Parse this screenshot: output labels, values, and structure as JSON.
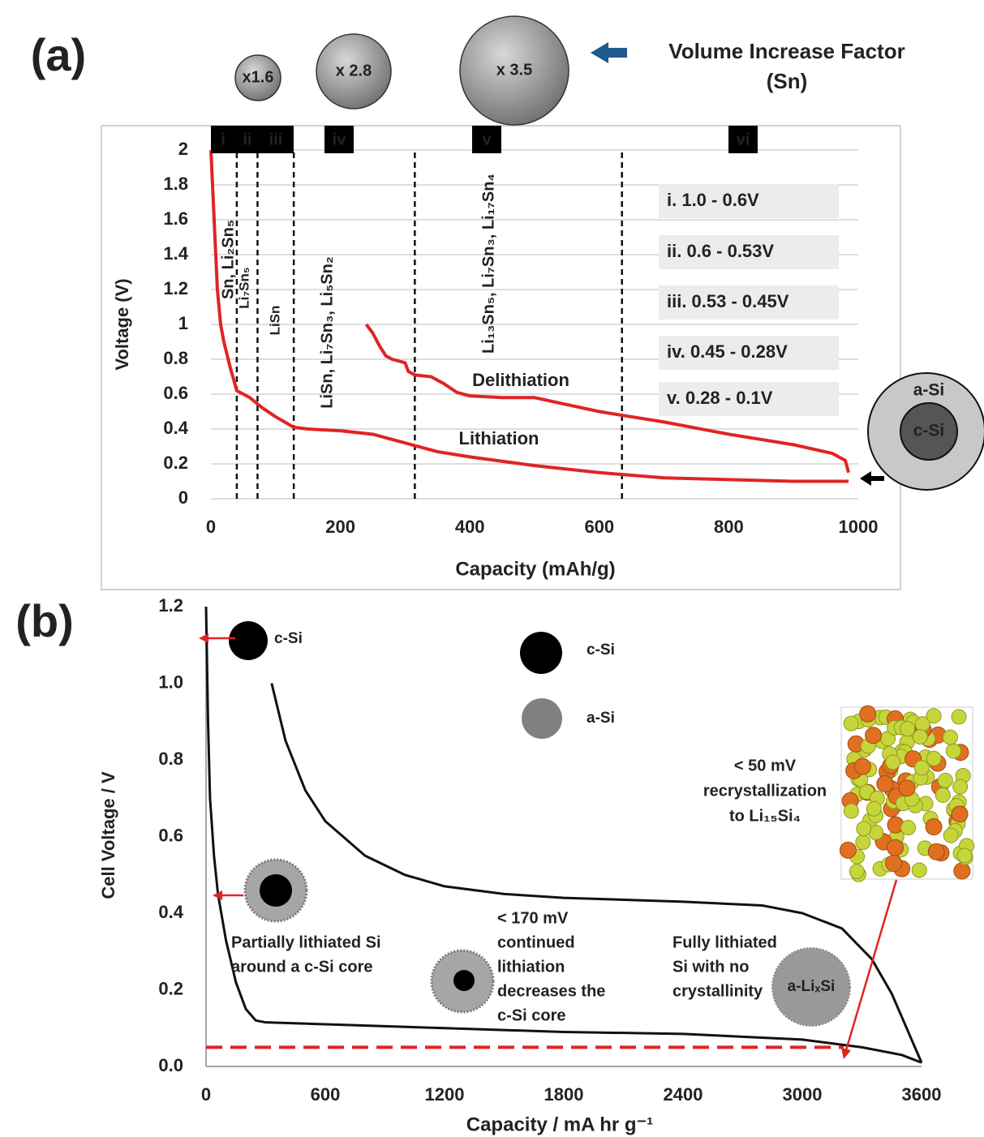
{
  "chart_data": [
    {
      "type": "line",
      "panel_label": "(a)",
      "x_label": "Capacity (mAh/g)",
      "y_label": "Voltage (V)",
      "xlim": [
        0,
        1000
      ],
      "xticks": [
        0,
        200,
        400,
        600,
        800,
        1000
      ],
      "ylim": [
        0,
        2
      ],
      "yticks": [
        0,
        0.2,
        0.4,
        0.6,
        0.8,
        1,
        1.2,
        1.4,
        1.6,
        1.8,
        2
      ],
      "grid": true,
      "series": [
        {
          "name": "Lithiation",
          "color": "#e02424",
          "x": [
            0,
            5,
            10,
            15,
            20,
            30,
            40,
            60,
            80,
            100,
            128,
            150,
            200,
            250,
            300,
            350,
            400,
            500,
            600,
            700,
            800,
            900,
            985
          ],
          "values": [
            2.0,
            1.6,
            1.2,
            1.0,
            0.9,
            0.75,
            0.62,
            0.58,
            0.52,
            0.47,
            0.41,
            0.4,
            0.39,
            0.37,
            0.32,
            0.27,
            0.24,
            0.19,
            0.15,
            0.12,
            0.11,
            0.1,
            0.1
          ]
        },
        {
          "name": "Delithiation",
          "color": "#e02424",
          "x": [
            240,
            250,
            260,
            270,
            280,
            300,
            305,
            315,
            340,
            360,
            380,
            400,
            450,
            500,
            550,
            600,
            650,
            700,
            800,
            900,
            960,
            980,
            985
          ],
          "values": [
            1.0,
            0.95,
            0.88,
            0.82,
            0.8,
            0.78,
            0.73,
            0.71,
            0.7,
            0.66,
            0.61,
            0.59,
            0.58,
            0.58,
            0.54,
            0.5,
            0.47,
            0.44,
            0.37,
            0.31,
            0.26,
            0.22,
            0.15
          ]
        }
      ],
      "region_boundaries": [
        40,
        72,
        128,
        315,
        635
      ],
      "region_labels": [
        "i",
        "ii",
        "iii",
        "iv",
        "v",
        "vi"
      ],
      "phase_labels": [
        "Sn, Li₂Sn₅",
        "Li₇Sn₅",
        "LiSn",
        "LiSn, Li₇Sn₃, Li₅Sn₂",
        "Li₁₃Sn₅, Li₇Sn₃, Li₁₇Sn₄"
      ],
      "voltage_ranges": [
        "i. 1.0 - 0.6V",
        "ii. 0.6 - 0.53V",
        "iii. 0.53 - 0.45V",
        "iv. 0.45 - 0.28V",
        "v. 0.28 - 0.1V"
      ],
      "volume_factors": [
        "x1.6",
        "x 2.8",
        "x 3.5"
      ],
      "volume_title": [
        "Volume Increase Factor",
        "(Sn)"
      ],
      "particle_labels": [
        "a-Si",
        "c-Si"
      ]
    },
    {
      "type": "line",
      "panel_label": "(b)",
      "x_label": "Capacity / mA hr g⁻¹",
      "y_label": "Cell Voltage / V",
      "xlim": [
        0,
        3600
      ],
      "xticks": [
        0,
        600,
        1200,
        1800,
        2400,
        3000,
        3600
      ],
      "ylim": [
        0,
        1.2
      ],
      "yticks": [
        {
          "value": 0,
          "label": "0.0"
        },
        0.2,
        0.4,
        0.6,
        0.8,
        {
          "value": 1,
          "label": "1.0"
        },
        1.2
      ],
      "grid": false,
      "series": [
        {
          "color": "#111111",
          "x": [
            0,
            10,
            20,
            40,
            60,
            100,
            150,
            200,
            250,
            300,
            600,
            1200,
            1800,
            2400,
            3000,
            3300,
            3500,
            3600
          ],
          "values": [
            1.2,
            0.9,
            0.7,
            0.55,
            0.45,
            0.33,
            0.22,
            0.15,
            0.12,
            0.115,
            0.11,
            0.1,
            0.09,
            0.085,
            0.07,
            0.05,
            0.03,
            0.01
          ]
        },
        {
          "color": "#111111",
          "x": [
            330,
            400,
            500,
            600,
            800,
            1000,
            1200,
            1500,
            1800,
            2400,
            2800,
            3000,
            3200,
            3350,
            3450,
            3500,
            3550,
            3600
          ],
          "values": [
            1.0,
            0.85,
            0.72,
            0.64,
            0.55,
            0.5,
            0.47,
            0.45,
            0.44,
            0.43,
            0.42,
            0.4,
            0.36,
            0.28,
            0.19,
            0.13,
            0.07,
            0.01
          ]
        }
      ],
      "threshold": {
        "value": 0.05,
        "color": "#e02424"
      },
      "marker_label": "c-Si",
      "legend": [
        "c-Si",
        "a-Si"
      ],
      "recrystallization_note": [
        "< 50 mV",
        "recrystallization",
        "to Li₁₅Si₄"
      ],
      "partial_note": [
        "Partially lithiated Si",
        "around a c-Si core"
      ],
      "continued_note": [
        "< 170 mV",
        "continued",
        "lithiation",
        "decreases the",
        "c-Si core"
      ],
      "full_note": [
        "Fully lithiated",
        "Si with no",
        "crystallinity"
      ],
      "full_particle": "a-LiₓSi"
    }
  ]
}
